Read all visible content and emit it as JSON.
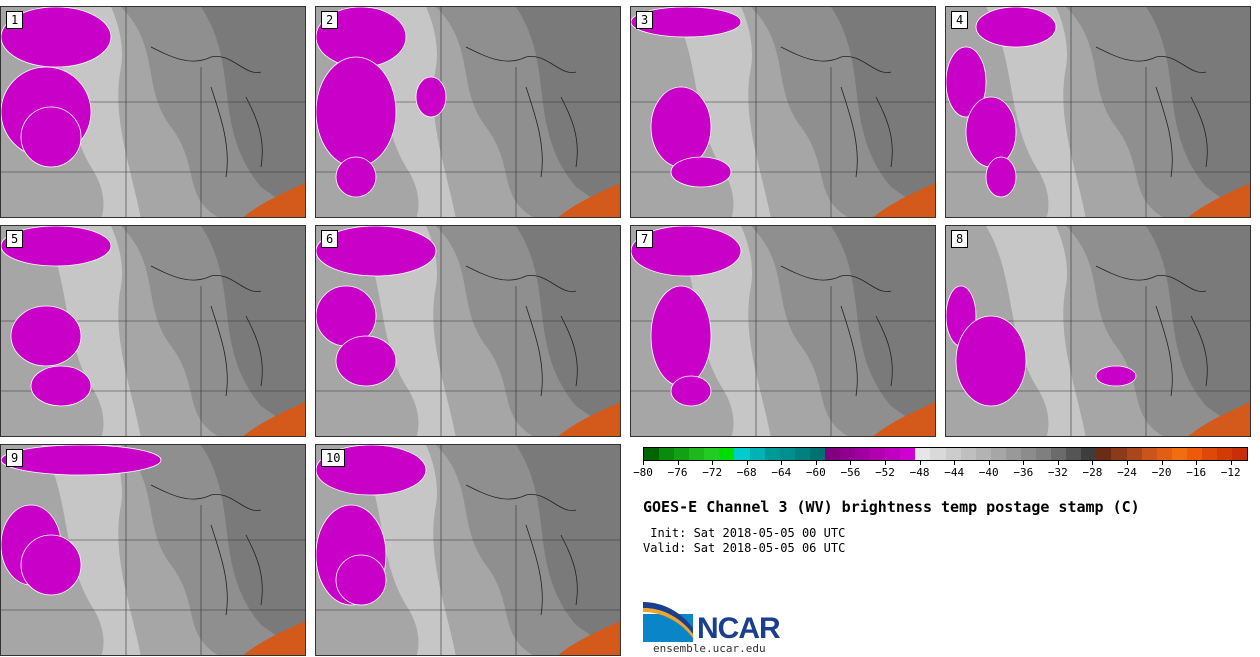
{
  "panels": [
    {
      "label": "1"
    },
    {
      "label": "2"
    },
    {
      "label": "3"
    },
    {
      "label": "4"
    },
    {
      "label": "5"
    },
    {
      "label": "6"
    },
    {
      "label": "7"
    },
    {
      "label": "8"
    },
    {
      "label": "9"
    },
    {
      "label": "10"
    }
  ],
  "colorbar": {
    "colors": [
      "#006400",
      "#0b8a0b",
      "#14a014",
      "#1cb81c",
      "#22cc22",
      "#00dd00",
      "#00cccc",
      "#00b3b3",
      "#009999",
      "#008f8f",
      "#008080",
      "#007070",
      "#800080",
      "#8f008f",
      "#a000a0",
      "#b000b0",
      "#c000c0",
      "#d000d0",
      "#e6e6e6",
      "#d9d9d9",
      "#cccccc",
      "#bfbfbf",
      "#b3b3b3",
      "#a6a6a6",
      "#999999",
      "#8c8c8c",
      "#7f7f7f",
      "#6b6b6b",
      "#555555",
      "#3d3d3d",
      "#6b2b15",
      "#8b3a1a",
      "#a8461c",
      "#c9541c",
      "#e05f14",
      "#f06e10",
      "#ef5a0a",
      "#e0480a",
      "#d23a08",
      "#c82e08"
    ],
    "tick_labels": [
      "−80",
      "−76",
      "−72",
      "−68",
      "−64",
      "−60",
      "−56",
      "−52",
      "−48",
      "−44",
      "−40",
      "−36",
      "−32",
      "−28",
      "−24",
      "−20",
      "−16",
      "−12"
    ],
    "min": -80,
    "max": -10
  },
  "title": "GOES-E Channel 3 (WV) brightness temp postage stamp (C)",
  "init": " Init: Sat 2018-05-05 00 UTC",
  "valid": "Valid: Sat 2018-05-05 06 UTC",
  "logo": {
    "name": "NCAR",
    "url": "ensemble.ucar.edu",
    "brand_color": "#1b3f8f",
    "accent_color": "#0a86c8"
  }
}
